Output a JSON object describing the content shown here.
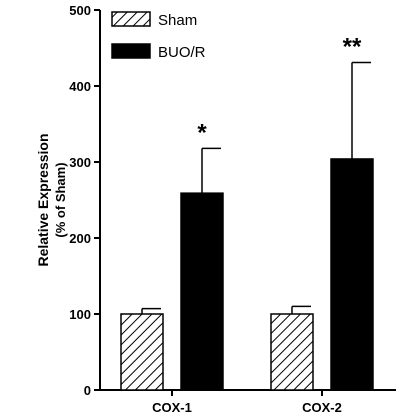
{
  "chart_data": {
    "type": "bar",
    "categories": [
      "COX-1",
      "COX-2"
    ],
    "series": [
      {
        "name": "Sham",
        "values": [
          100,
          100
        ],
        "errors": [
          7,
          10
        ],
        "fill": "hatched"
      },
      {
        "name": "BUO/R",
        "values": [
          259,
          304
        ],
        "errors": [
          59,
          127
        ],
        "fill": "#000000"
      }
    ],
    "significance": [
      "*",
      "**"
    ],
    "ylabel_line1": "Relative Expression",
    "ylabel_line2": "(% of Sham)",
    "ylim": [
      0,
      500
    ],
    "yticks": [
      0,
      100,
      200,
      300,
      400,
      500
    ],
    "legend_position": "top-left",
    "grid": false
  }
}
